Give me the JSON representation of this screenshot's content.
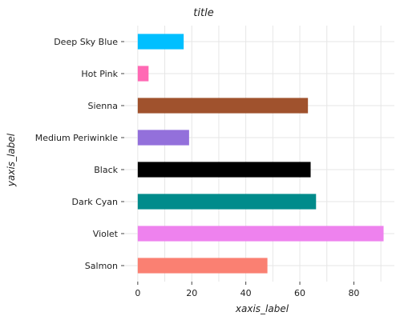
{
  "chart_data": {
    "type": "bar",
    "orientation": "horizontal",
    "title": "title",
    "xlabel": "xaxis_label",
    "ylabel": "yaxis_label",
    "xlim": [
      -5,
      95
    ],
    "xticks": [
      0,
      20,
      40,
      60,
      80
    ],
    "grid": true,
    "categories": [
      "Salmon",
      "Violet",
      "Dark Cyan",
      "Black",
      "Medium Periwinkle",
      "Sienna",
      "Hot Pink",
      "Deep Sky Blue"
    ],
    "values": [
      48,
      91,
      66,
      64,
      19,
      63,
      4,
      17
    ],
    "colors": [
      "#fa8072",
      "#ee82ee",
      "#008b8b",
      "#000000",
      "#9370db",
      "#a0522d",
      "#ff69b4",
      "#00bfff"
    ]
  }
}
